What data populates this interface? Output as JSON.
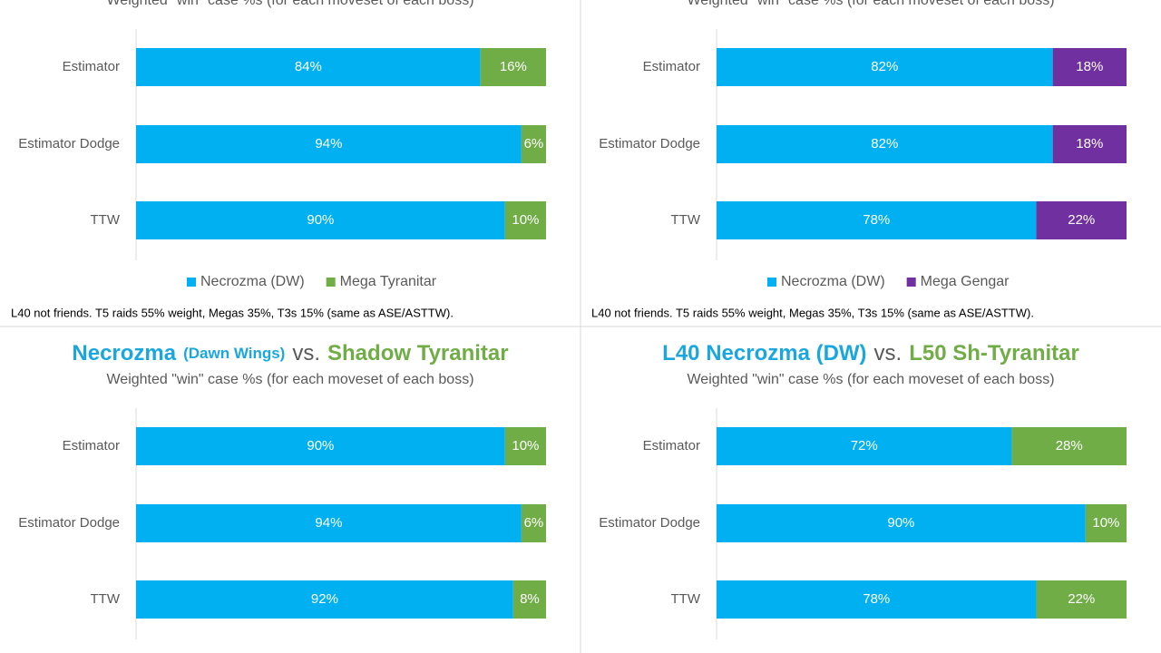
{
  "chart_data": [
    {
      "type": "stacked-bar-horizontal",
      "subtitle": "Weighted \"win\" case %s (for each moveset of each boss)",
      "categories": [
        "Estimator",
        "Estimator Dodge",
        "TTW"
      ],
      "series": [
        {
          "name": "Necrozma (DW)",
          "color": "#00b0f0",
          "values": [
            84,
            94,
            90
          ],
          "value_labels": [
            "84%",
            "94%",
            "90%"
          ]
        },
        {
          "name": "Mega Tyranitar",
          "color": "#70ad47",
          "values": [
            16,
            6,
            10
          ],
          "value_labels": [
            "16%",
            "6%",
            "10%"
          ]
        }
      ],
      "xlim": [
        0,
        100
      ],
      "note": "L40 not friends. T5 raids 55% weight, Megas 35%, T3s 15% (same as ASE/ASTTW)."
    },
    {
      "type": "stacked-bar-horizontal",
      "subtitle": "Weighted \"win\" case %s (for each moveset of each boss)",
      "categories": [
        "Estimator",
        "Estimator Dodge",
        "TTW"
      ],
      "series": [
        {
          "name": "Necrozma (DW)",
          "color": "#00b0f0",
          "values": [
            82,
            82,
            78
          ],
          "value_labels": [
            "82%",
            "82%",
            "78%"
          ]
        },
        {
          "name": "Mega Gengar",
          "color": "#7030a0",
          "values": [
            18,
            18,
            22
          ],
          "value_labels": [
            "18%",
            "18%",
            "22%"
          ]
        }
      ],
      "xlim": [
        0,
        100
      ],
      "note": "L40 not friends. T5 raids 55% weight, Megas 35%, T3s 15% (same as ASE/ASTTW)."
    },
    {
      "type": "stacked-bar-horizontal",
      "title_parts": [
        {
          "text": "Necrozma",
          "color": "#1aa7e0"
        },
        {
          "text": "(Dawn Wings)",
          "color": "#1aa7e0",
          "style": "small"
        },
        {
          "text": "vs.",
          "color": "#595959",
          "style": "normal"
        },
        {
          "text": "Shadow Tyranitar",
          "color": "#70ad47"
        }
      ],
      "subtitle": "Weighted \"win\" case %s (for each moveset of each boss)",
      "categories": [
        "Estimator",
        "Estimator Dodge",
        "TTW"
      ],
      "series": [
        {
          "color": "#00b0f0",
          "values": [
            90,
            94,
            92
          ],
          "value_labels": [
            "90%",
            "94%",
            "92%"
          ]
        },
        {
          "color": "#70ad47",
          "values": [
            10,
            6,
            8
          ],
          "value_labels": [
            "10%",
            "6%",
            "8%"
          ]
        }
      ],
      "xlim": [
        0,
        100
      ]
    },
    {
      "type": "stacked-bar-horizontal",
      "title_parts": [
        {
          "text": "L40 Necrozma (DW)",
          "color": "#1aa7e0"
        },
        {
          "text": "vs.",
          "color": "#595959",
          "style": "normal"
        },
        {
          "text": "L50 Sh-Tyranitar",
          "color": "#70ad47"
        }
      ],
      "subtitle": "Weighted \"win\" case %s (for each moveset of each boss)",
      "categories": [
        "Estimator",
        "Estimator Dodge",
        "TTW"
      ],
      "series": [
        {
          "color": "#00b0f0",
          "values": [
            72,
            90,
            78
          ],
          "value_labels": [
            "72%",
            "90%",
            "78%"
          ]
        },
        {
          "color": "#70ad47",
          "values": [
            28,
            10,
            22
          ],
          "value_labels": [
            "28%",
            "10%",
            "22%"
          ]
        }
      ],
      "xlim": [
        0,
        100
      ]
    }
  ]
}
